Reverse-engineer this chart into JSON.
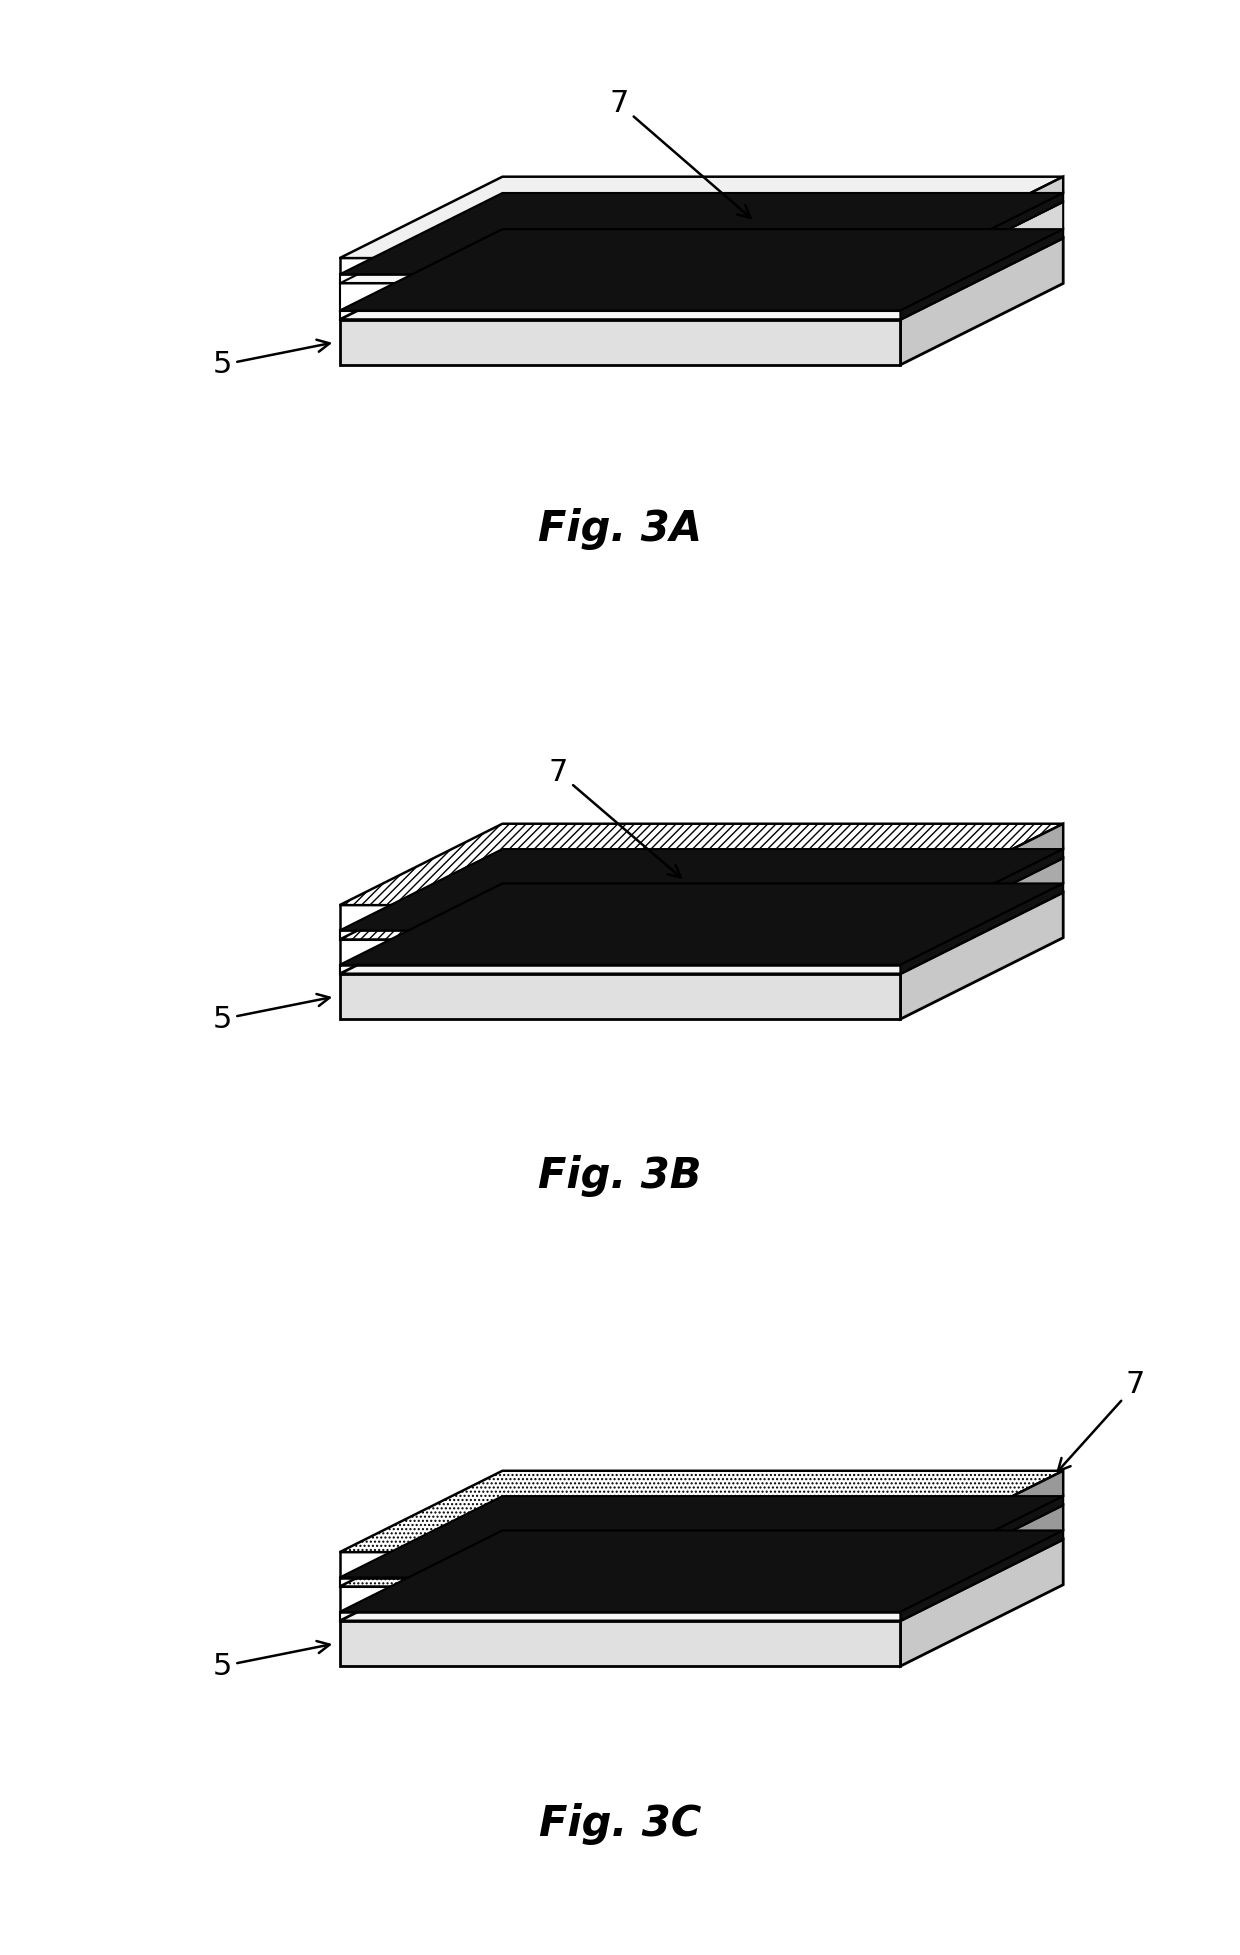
{
  "background_color": "#ffffff",
  "fig_labels": [
    "Fig. 3A",
    "Fig. 3B",
    "Fig. 3C"
  ],
  "label_fontsize": 30,
  "label_fontstyle": "italic",
  "label_fontweight": "bold",
  "annotation_fontsize": 22,
  "line_color": "#000000",
  "thick_bar_color": "#1a1a1a",
  "fill_color_light": "#f5f5f5",
  "fill_color_white": "#ffffff",
  "fill_color_side": "#c0c0c0"
}
